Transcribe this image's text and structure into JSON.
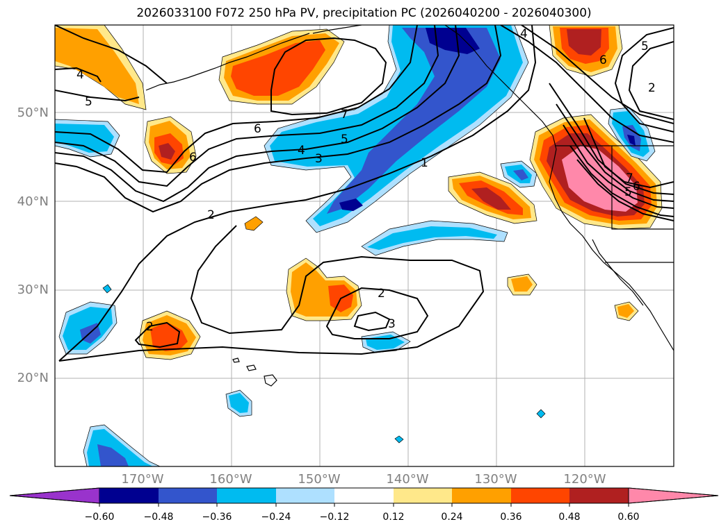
{
  "title": "2026033100 F072 250 hPa PV, precipitation PC (2026040200 - 2026040300)",
  "map": {
    "lat_labels": [
      "50°N",
      "40°N",
      "30°N",
      "20°N"
    ],
    "lon_labels": [
      "170°W",
      "160°W",
      "150°W",
      "140°W",
      "130°W",
      "120°W"
    ],
    "contour_labels": [
      "4",
      "5",
      "2",
      "6",
      "7",
      "5",
      "4",
      "3",
      "6",
      "1",
      "2",
      "2",
      "3",
      "7",
      "5",
      "6",
      "4",
      "5",
      "6",
      "2"
    ]
  },
  "colorbar": {
    "tick_labels": [
      "−0.60",
      "−0.48",
      "−0.36",
      "−0.24",
      "−0.12",
      "0.12",
      "0.24",
      "0.36",
      "0.48",
      "0.60"
    ],
    "colors": [
      "#9933cc",
      "#000090",
      "#3355cc",
      "#00bbf0",
      "#aee0ff",
      "#ffffff",
      "#ffe88a",
      "#ffa000",
      "#ff4500",
      "#b02020",
      "#ff88aa"
    ]
  }
}
